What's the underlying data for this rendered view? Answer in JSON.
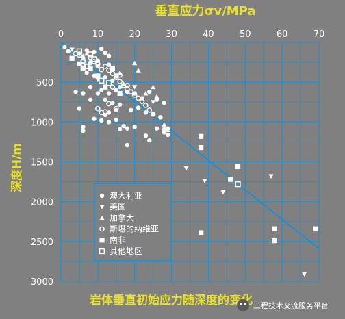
{
  "chart_data": {
    "type": "scatter",
    "title": "岩体垂直初始应力随深度的变化",
    "xlabel": "垂直应力σv/MPa",
    "ylabel": "深度H/m",
    "xlim": [
      0,
      70
    ],
    "ylim": [
      0,
      3000
    ],
    "y_inverted": true,
    "x_axis_position": "top",
    "xticks": [
      0,
      10,
      20,
      30,
      40,
      50,
      60,
      70
    ],
    "yticks": [
      500,
      1000,
      1500,
      2000,
      2500,
      3000
    ],
    "grid": true,
    "legend_placement": "bottom-left",
    "trend_line": {
      "x": [
        0,
        70
      ],
      "y": [
        0,
        2590
      ],
      "color": "#1f8fd0"
    },
    "series": [
      {
        "name": "澳大利亚",
        "marker": "filled-circle",
        "points": [
          [
            1,
            60
          ],
          [
            2,
            110
          ],
          [
            5,
            140
          ],
          [
            6,
            200
          ],
          [
            7,
            100
          ],
          [
            9,
            120
          ],
          [
            11,
            80
          ],
          [
            12,
            130
          ],
          [
            13,
            170
          ],
          [
            8,
            260
          ],
          [
            10,
            300
          ],
          [
            7,
            380
          ],
          [
            9,
            420
          ],
          [
            12,
            440
          ],
          [
            14,
            480
          ],
          [
            4,
            620
          ],
          [
            6,
            640
          ],
          [
            8,
            560
          ],
          [
            11,
            600
          ],
          [
            13,
            640
          ],
          [
            15,
            600
          ],
          [
            16,
            560
          ],
          [
            18,
            620
          ],
          [
            20,
            640
          ],
          [
            24,
            620
          ],
          [
            22,
            700
          ],
          [
            26,
            720
          ],
          [
            28,
            760
          ],
          [
            12,
            720
          ],
          [
            14,
            760
          ],
          [
            16,
            780
          ],
          [
            19,
            850
          ],
          [
            21,
            820
          ],
          [
            23,
            880
          ],
          [
            25,
            900
          ],
          [
            27,
            940
          ],
          [
            9,
            960
          ],
          [
            11,
            980
          ],
          [
            13,
            1000
          ],
          [
            15,
            970
          ],
          [
            17,
            1050
          ],
          [
            18,
            1080
          ],
          [
            20,
            1060
          ],
          [
            6,
            1060
          ],
          [
            6,
            1110
          ],
          [
            16,
            1090
          ],
          [
            23,
            1170
          ],
          [
            24,
            1230
          ],
          [
            26,
            1080
          ],
          [
            28,
            1090
          ],
          [
            29,
            1080
          ],
          [
            28,
            1130
          ],
          [
            29,
            1160
          ],
          [
            18,
            1290
          ],
          [
            10,
            300
          ],
          [
            10,
            230
          ],
          [
            13,
            280
          ],
          [
            5,
            830
          ],
          [
            8,
            720
          ],
          [
            10,
            640
          ],
          [
            12,
            910
          ],
          [
            13,
            880
          ],
          [
            15,
            850
          ]
        ]
      },
      {
        "name": "美国",
        "marker": "triangle-down",
        "points": [
          [
            3,
            90
          ],
          [
            5,
            150
          ],
          [
            10,
            470
          ],
          [
            15,
            430
          ],
          [
            20,
            560
          ],
          [
            25,
            750
          ],
          [
            34,
            1580
          ],
          [
            39,
            1740
          ],
          [
            44,
            1880
          ],
          [
            57,
            1680
          ],
          [
            66,
            2910
          ]
        ]
      },
      {
        "name": "加拿大",
        "marker": "triangle-up",
        "points": [
          [
            6,
            170
          ],
          [
            7,
            140
          ],
          [
            8,
            230
          ],
          [
            16,
            380
          ],
          [
            20,
            260
          ],
          [
            21,
            350
          ],
          [
            17,
            520
          ],
          [
            25,
            560
          ],
          [
            26,
            680
          ],
          [
            23,
            640
          ],
          [
            28,
            1030
          ],
          [
            29,
            1100
          ]
        ]
      },
      {
        "name": "斯堪的纳维亚",
        "marker": "open-circle",
        "points": [
          [
            4,
            140
          ],
          [
            5,
            160
          ],
          [
            6,
            240
          ],
          [
            7,
            300
          ],
          [
            9,
            240
          ],
          [
            10,
            270
          ],
          [
            11,
            340
          ],
          [
            12,
            300
          ],
          [
            13,
            350
          ],
          [
            14,
            390
          ],
          [
            15,
            440
          ],
          [
            16,
            490
          ],
          [
            17,
            540
          ],
          [
            18,
            580
          ],
          [
            19,
            620
          ],
          [
            20,
            660
          ],
          [
            21,
            700
          ],
          [
            22,
            740
          ],
          [
            23,
            790
          ],
          [
            24,
            850
          ],
          [
            25,
            900
          ],
          [
            10,
            830
          ],
          [
            12,
            870
          ],
          [
            11,
            880
          ],
          [
            13,
            770
          ],
          [
            15,
            830
          ],
          [
            8,
            190
          ],
          [
            6,
            230
          ],
          [
            16,
            410
          ],
          [
            14,
            560
          ],
          [
            18,
            540
          ]
        ]
      },
      {
        "name": "南非",
        "marker": "filled-square",
        "points": [
          [
            3,
            200
          ],
          [
            5,
            270
          ],
          [
            6,
            320
          ],
          [
            8,
            330
          ],
          [
            10,
            420
          ],
          [
            14,
            330
          ],
          [
            15,
            420
          ],
          [
            12,
            560
          ],
          [
            16,
            640
          ],
          [
            38,
            1180
          ],
          [
            38,
            1320
          ],
          [
            46,
            1720
          ],
          [
            48,
            1560
          ],
          [
            38,
            2390
          ],
          [
            58,
            2340
          ],
          [
            58,
            2490
          ],
          [
            69,
            2340
          ]
        ]
      },
      {
        "name": "其他地区",
        "marker": "open-square",
        "points": [
          [
            5,
            110
          ],
          [
            8,
            150
          ],
          [
            9,
            210
          ],
          [
            7,
            300
          ],
          [
            11,
            480
          ],
          [
            13,
            510
          ],
          [
            48,
            1780
          ]
        ]
      }
    ]
  },
  "watermark": {
    "text": "工程技术交流服务平台"
  }
}
